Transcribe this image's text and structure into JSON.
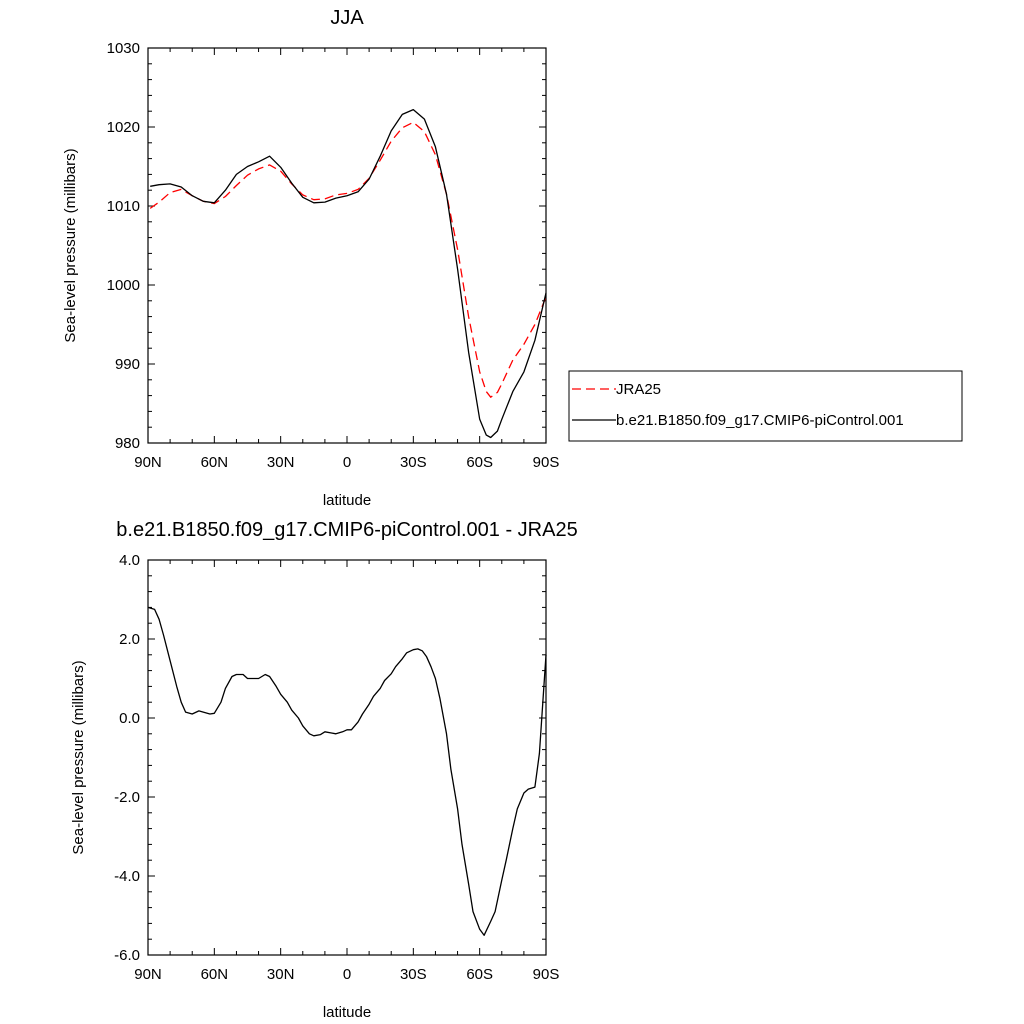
{
  "chart_data": [
    {
      "type": "line",
      "title": "JJA",
      "xlabel": "latitude",
      "ylabel": "Sea-level pressure (millibars)",
      "xlim": [
        90,
        -90
      ],
      "ylim": [
        980,
        1030
      ],
      "x_ticks": [
        90,
        60,
        30,
        0,
        -30,
        -60,
        -90
      ],
      "x_tick_labels": [
        "90N",
        "60N",
        "30N",
        "0",
        "30S",
        "60S",
        "90S"
      ],
      "y_ticks": [
        980,
        990,
        1000,
        1010,
        1020,
        1030
      ],
      "y_tick_labels": [
        "980",
        "990",
        "1000",
        "1010",
        "1020",
        "1030"
      ],
      "grid": false,
      "legend_position": "right",
      "series": [
        {
          "name": "JRA25",
          "color": "#ff0000",
          "dash": "dashed",
          "x": [
            89,
            85,
            80,
            75,
            70,
            65,
            60,
            55,
            50,
            45,
            40,
            35,
            30,
            25,
            20,
            15,
            10,
            5,
            0,
            -5,
            -10,
            -15,
            -20,
            -25,
            -30,
            -35,
            -40,
            -45,
            -50,
            -55,
            -60,
            -63,
            -65,
            -68,
            -70,
            -75,
            -80,
            -85,
            -90
          ],
          "y": [
            1009.7,
            1010.5,
            1011.7,
            1012.1,
            1011.3,
            1010.6,
            1010.3,
            1011.2,
            1012.6,
            1013.9,
            1014.7,
            1015.2,
            1014.4,
            1012.8,
            1011.4,
            1010.8,
            1010.9,
            1011.4,
            1011.6,
            1012.1,
            1013.5,
            1015.8,
            1018.2,
            1019.9,
            1020.6,
            1019.4,
            1016.5,
            1011.5,
            1004.5,
            996.0,
            989.0,
            986.5,
            985.8,
            986.4,
            987.5,
            990.5,
            992.5,
            995.0,
            998.5
          ]
        },
        {
          "name": "b.e21.B1850.f09_g17.CMIP6-piControl.001",
          "color": "#000000",
          "dash": "solid",
          "x": [
            89,
            85,
            80,
            75,
            70,
            65,
            60,
            55,
            50,
            45,
            40,
            35,
            30,
            25,
            20,
            15,
            10,
            5,
            0,
            -5,
            -10,
            -15,
            -20,
            -25,
            -30,
            -35,
            -40,
            -45,
            -50,
            -55,
            -60,
            -63,
            -65,
            -68,
            -70,
            -75,
            -80,
            -85,
            -90
          ],
          "y": [
            1012.5,
            1012.7,
            1012.8,
            1012.4,
            1011.3,
            1010.6,
            1010.4,
            1012.0,
            1014.0,
            1015.0,
            1015.6,
            1016.3,
            1014.9,
            1012.9,
            1011.1,
            1010.4,
            1010.5,
            1011.0,
            1011.3,
            1011.8,
            1013.4,
            1016.3,
            1019.5,
            1021.6,
            1022.2,
            1021.0,
            1017.5,
            1011.5,
            1002.0,
            991.5,
            983.0,
            981.0,
            980.7,
            981.5,
            983.0,
            986.5,
            989.0,
            993.0,
            999.0
          ]
        }
      ]
    },
    {
      "type": "line",
      "title": "b.e21.B1850.f09_g17.CMIP6-piControl.001 - JRA25",
      "xlabel": "latitude",
      "ylabel": "Sea-level pressure (millibars)",
      "xlim": [
        90,
        -90
      ],
      "ylim": [
        -6.0,
        4.0
      ],
      "x_ticks": [
        90,
        60,
        30,
        0,
        -30,
        -60,
        -90
      ],
      "x_tick_labels": [
        "90N",
        "60N",
        "30N",
        "0",
        "30S",
        "60S",
        "90S"
      ],
      "y_ticks": [
        -6,
        -4,
        -2,
        0,
        2,
        4
      ],
      "y_tick_labels": [
        "-6.0",
        "-4.0",
        "-2.0",
        "0.0",
        "2.0",
        "4.0"
      ],
      "grid": false,
      "series": [
        {
          "color": "#000000",
          "dash": "solid",
          "x": [
            90,
            87,
            85,
            83,
            80,
            77,
            75,
            73,
            70,
            67,
            65,
            62,
            60,
            57,
            55,
            52,
            50,
            47,
            45,
            42,
            40,
            37,
            35,
            32,
            30,
            27,
            25,
            22,
            20,
            17,
            15,
            12,
            10,
            7,
            5,
            2,
            0,
            -2,
            -5,
            -7,
            -10,
            -12,
            -15,
            -17,
            -20,
            -22,
            -25,
            -27,
            -30,
            -32,
            -34,
            -36,
            -38,
            -40,
            -42,
            -45,
            -47,
            -50,
            -52,
            -55,
            -57,
            -60,
            -62,
            -65,
            -67,
            -70,
            -72,
            -75,
            -77,
            -80,
            -82,
            -85,
            -87,
            -90
          ],
          "y": [
            2.8,
            2.75,
            2.5,
            2.1,
            1.45,
            0.8,
            0.4,
            0.15,
            0.1,
            0.18,
            0.15,
            0.1,
            0.12,
            0.4,
            0.75,
            1.05,
            1.1,
            1.1,
            1.0,
            1.0,
            1.0,
            1.1,
            1.05,
            0.8,
            0.6,
            0.4,
            0.2,
            0.0,
            -0.2,
            -0.4,
            -0.45,
            -0.42,
            -0.35,
            -0.38,
            -0.4,
            -0.35,
            -0.3,
            -0.3,
            -0.1,
            0.1,
            0.35,
            0.55,
            0.75,
            0.95,
            1.12,
            1.3,
            1.5,
            1.65,
            1.73,
            1.75,
            1.7,
            1.55,
            1.3,
            1.0,
            0.5,
            -0.4,
            -1.3,
            -2.3,
            -3.2,
            -4.2,
            -4.9,
            -5.35,
            -5.5,
            -5.15,
            -4.9,
            -4.1,
            -3.6,
            -2.8,
            -2.3,
            -1.9,
            -1.8,
            -1.75,
            -0.9,
            1.6
          ]
        }
      ]
    }
  ]
}
